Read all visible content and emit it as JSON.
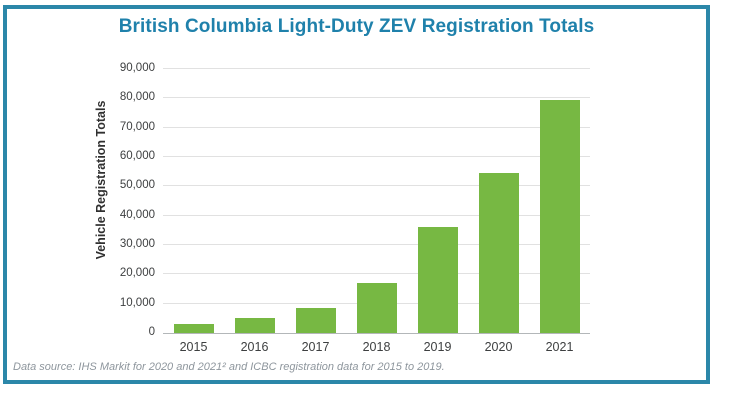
{
  "title": "British Columbia Light-Duty ZEV Registration Totals",
  "footer_note": "Data source: IHS Markit for 2020 and 2021² and ICBC registration data for 2015 to 2019.",
  "colors": {
    "accent_teal": "#1f81ab",
    "frame_border": "#2b87a9",
    "bar_green": "#77b843",
    "gridline": "#e1e1e1",
    "axis_baseline": "#b3b7b9",
    "tick_text": "#3d3f40",
    "footer_text": "#8e969d"
  },
  "chart_data": {
    "type": "bar",
    "title": "British Columbia Light-Duty ZEV Registration Totals",
    "categories": [
      "2015",
      "2016",
      "2017",
      "2018",
      "2019",
      "2020",
      "2021"
    ],
    "values": [
      3100,
      5200,
      8600,
      17100,
      36300,
      54400,
      79500
    ],
    "xlabel": "",
    "ylabel": "Vehicle Registration Totals",
    "ylim": [
      0,
      90000
    ],
    "ytick_step": 10000,
    "ytick_labels": [
      "0",
      "10,000",
      "20,000",
      "30,000",
      "40,000",
      "50,000",
      "60,000",
      "70,000",
      "80,000",
      "90,000"
    ],
    "grid": true,
    "legend_position": "none",
    "bar_color": "#77b843"
  }
}
